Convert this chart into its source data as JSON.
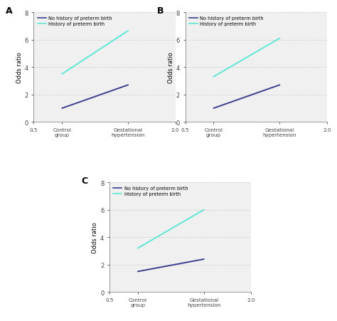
{
  "panels": [
    {
      "label": "A",
      "dark_line": {
        "x": [
          0.8,
          1.5
        ],
        "y": [
          1.0,
          2.7
        ]
      },
      "light_line": {
        "x": [
          0.8,
          1.5
        ],
        "y": [
          3.5,
          6.65
        ]
      }
    },
    {
      "label": "B",
      "dark_line": {
        "x": [
          0.8,
          1.5
        ],
        "y": [
          1.0,
          2.7
        ]
      },
      "light_line": {
        "x": [
          0.8,
          1.5
        ],
        "y": [
          3.3,
          6.1
        ]
      }
    },
    {
      "label": "C",
      "dark_line": {
        "x": [
          0.8,
          1.5
        ],
        "y": [
          1.5,
          2.4
        ]
      },
      "light_line": {
        "x": [
          0.8,
          1.5
        ],
        "y": [
          3.2,
          6.0
        ]
      }
    }
  ],
  "dark_color": "#3a3f8f",
  "light_color": "#5ee8d5",
  "xlim": [
    0.5,
    2.0
  ],
  "ylim": [
    0,
    8
  ],
  "yticks": [
    0,
    2,
    4,
    6,
    8
  ],
  "ylabel": "Odds ratio",
  "legend_labels": [
    "No history of preterm birth",
    "History of preterm birth"
  ],
  "grid_color": "#bbbbbb",
  "bg_color": "#f0f0f0"
}
